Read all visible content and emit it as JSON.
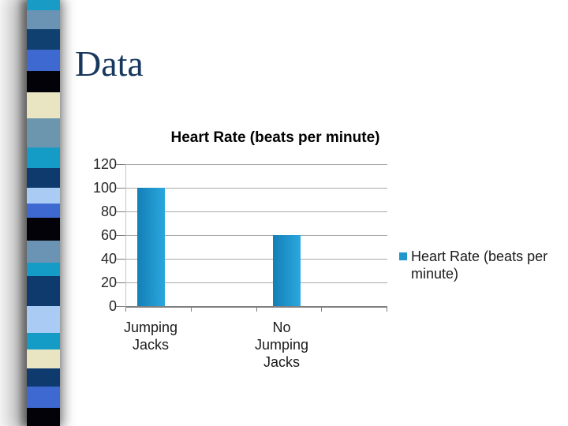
{
  "slide": {
    "title": "Data",
    "title_color": "#17375e",
    "background_color": "#ffffff"
  },
  "sidebar": {
    "description": "decorative vertical color-block strip",
    "blocks": [
      {
        "color": "#189cc6",
        "height": 13
      },
      {
        "color": "#6b93b3",
        "height": 24
      },
      {
        "color": "#10406f",
        "height": 26
      },
      {
        "color": "#3e69d1",
        "height": 27
      },
      {
        "color": "#020208",
        "height": 27
      },
      {
        "color": "#e9e5c3",
        "height": 33
      },
      {
        "color": "#6b96ad",
        "height": 37
      },
      {
        "color": "#149bc6",
        "height": 26
      },
      {
        "color": "#0e3a6d",
        "height": 25
      },
      {
        "color": "#aacbf3",
        "height": 20
      },
      {
        "color": "#3e69d1",
        "height": 18
      },
      {
        "color": "#020208",
        "height": 29
      },
      {
        "color": "#6b93b3",
        "height": 28
      },
      {
        "color": "#149bc6",
        "height": 17
      },
      {
        "color": "#0e3a6d",
        "height": 38
      },
      {
        "color": "#aacbf3",
        "height": 34
      },
      {
        "color": "#149bc6",
        "height": 21
      },
      {
        "color": "#e9e5c3",
        "height": 24
      },
      {
        "color": "#0e3a6d",
        "height": 23
      },
      {
        "color": "#3e69d1",
        "height": 27
      },
      {
        "color": "#020208",
        "height": 23
      }
    ]
  },
  "chart_data": {
    "type": "bar",
    "title": "Heart Rate (beats per minute)",
    "categories": [
      "Jumping Jacks",
      "No Jumping Jacks"
    ],
    "category_labels": [
      "Jumping\nJacks",
      "No\nJumping\nJacks"
    ],
    "values": [
      100,
      60
    ],
    "series": [
      {
        "name": "Heart Rate (beats per minute)",
        "values": [
          100,
          60
        ]
      }
    ],
    "xlabel": "",
    "ylabel": "",
    "ylim": [
      0,
      120
    ],
    "yticks": [
      0,
      20,
      40,
      60,
      80,
      100,
      120
    ],
    "grid": true,
    "legend_position": "right",
    "legend_label": "Heart Rate (beats per minute)",
    "colors": {
      "bar_gradient_left": "#137fb6",
      "bar_gradient_right": "#2ba7df",
      "legend_marker": "#1e97cc",
      "gridline": "#a9a9a9",
      "bottom_axis": "#7f7f7f",
      "vertical_axis": "#b5c9da",
      "tick_label": "#262626"
    }
  }
}
